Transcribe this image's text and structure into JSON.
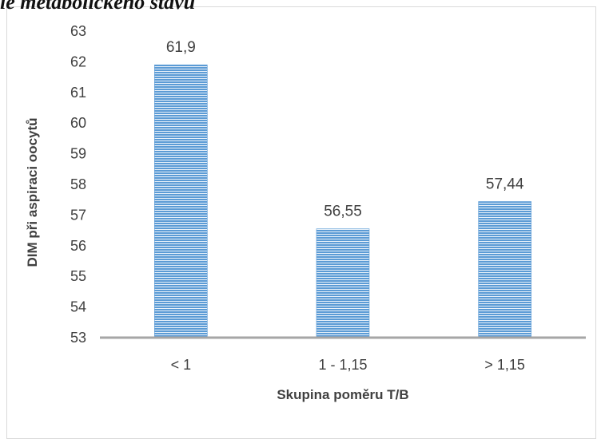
{
  "page": {
    "heading": "ie metabolického stavu"
  },
  "chart_data": {
    "type": "bar",
    "title": "",
    "xlabel": "Skupina poměru T/B",
    "ylabel": "DIM při aspiraci oocytů",
    "categories": [
      "< 1",
      "1 - 1,15",
      "> 1,15"
    ],
    "values": [
      61.9,
      56.55,
      57.44
    ],
    "data_labels": [
      "61,9",
      "56,55",
      "57,44"
    ],
    "ylim": [
      53,
      63
    ],
    "yticks": [
      53,
      54,
      55,
      56,
      57,
      58,
      59,
      60,
      61,
      62,
      63
    ],
    "grid": false,
    "legend": "none",
    "colors": {
      "bar": "#5b9bd5",
      "bar_stripe": "#ffffff",
      "axis": "#a6a6a6",
      "text": "#404040"
    }
  }
}
